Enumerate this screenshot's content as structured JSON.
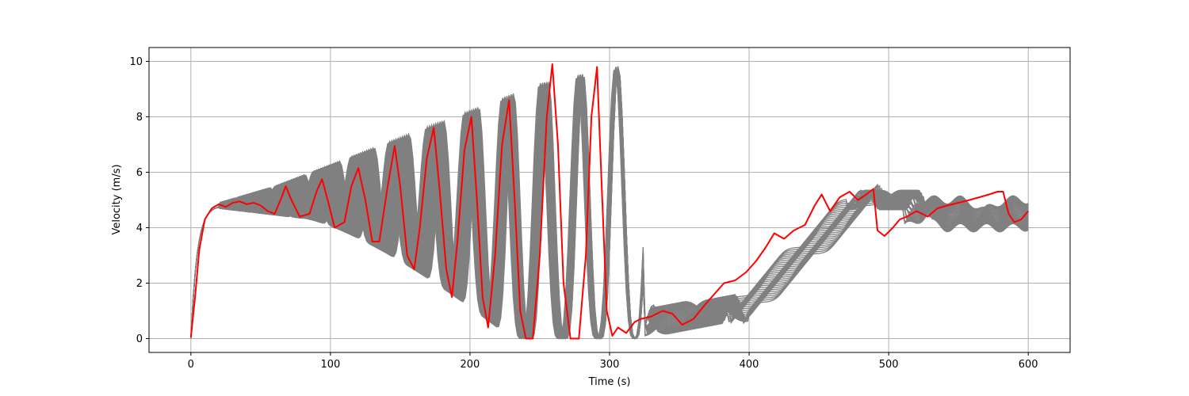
{
  "chart_data": {
    "type": "line",
    "title": "",
    "xlabel": "Time (s)",
    "ylabel": "Velocity (m/s)",
    "xlim": [
      -30,
      630
    ],
    "ylim": [
      -0.5,
      10.5
    ],
    "xticks": [
      0,
      100,
      200,
      300,
      400,
      500,
      600
    ],
    "yticks": [
      0,
      2,
      4,
      6,
      8,
      10
    ],
    "grid": true,
    "legend": "none",
    "background_series": {
      "description_color": "#808080",
      "count": 50,
      "note": "vehicle trajectories drawn in gray"
    },
    "highlight_series": {
      "color": "#ff0000",
      "x": [
        0,
        3,
        6,
        10,
        15,
        20,
        25,
        30,
        35,
        40,
        45,
        50,
        55,
        60,
        65,
        68,
        72,
        78,
        85,
        90,
        94,
        98,
        103,
        110,
        115,
        120,
        125,
        130,
        135,
        141,
        146,
        150,
        155,
        160,
        164,
        169,
        174,
        178,
        183,
        187,
        191,
        196,
        201,
        205,
        209,
        213,
        218,
        223,
        228,
        232,
        236,
        240,
        245,
        250,
        255,
        259,
        263,
        267,
        272,
        278,
        283,
        287,
        291,
        294,
        298,
        302,
        306,
        312,
        318,
        322,
        330,
        338,
        345,
        352,
        360,
        368,
        375,
        382,
        390,
        398,
        405,
        412,
        418,
        425,
        432,
        440,
        447,
        452,
        458,
        465,
        472,
        478,
        484,
        489,
        492,
        497,
        503,
        508,
        513,
        520,
        528,
        535,
        542,
        550,
        558,
        565,
        572,
        578,
        582,
        586,
        590,
        595,
        600
      ],
      "y": [
        0.05,
        1.5,
        3.2,
        4.3,
        4.7,
        4.85,
        4.75,
        4.9,
        4.95,
        4.85,
        4.9,
        4.8,
        4.6,
        4.5,
        5.1,
        5.5,
        5.0,
        4.4,
        4.5,
        5.3,
        5.75,
        5.0,
        4.0,
        4.2,
        5.5,
        6.15,
        5.0,
        3.5,
        3.5,
        5.5,
        6.95,
        5.5,
        3.0,
        2.5,
        4.0,
        6.5,
        7.6,
        5.5,
        2.5,
        1.5,
        3.5,
        6.8,
        8.0,
        5.0,
        1.5,
        0.4,
        3.0,
        7.0,
        8.6,
        5.0,
        1.0,
        0.0,
        0.0,
        3.0,
        8.0,
        9.9,
        7.0,
        2.0,
        0.0,
        0.0,
        3.0,
        8.0,
        9.8,
        6.0,
        1.0,
        0.1,
        0.4,
        0.2,
        0.6,
        0.7,
        0.8,
        1.0,
        0.9,
        0.5,
        0.7,
        1.2,
        1.6,
        2.0,
        2.1,
        2.4,
        2.8,
        3.3,
        3.8,
        3.6,
        3.9,
        4.1,
        4.8,
        5.2,
        4.6,
        5.1,
        5.3,
        5.0,
        5.2,
        5.4,
        3.9,
        3.7,
        4.0,
        4.3,
        4.4,
        4.6,
        4.4,
        4.7,
        4.8,
        4.9,
        5.0,
        5.1,
        5.2,
        5.3,
        5.3,
        4.5,
        4.2,
        4.3,
        4.6
      ]
    }
  }
}
